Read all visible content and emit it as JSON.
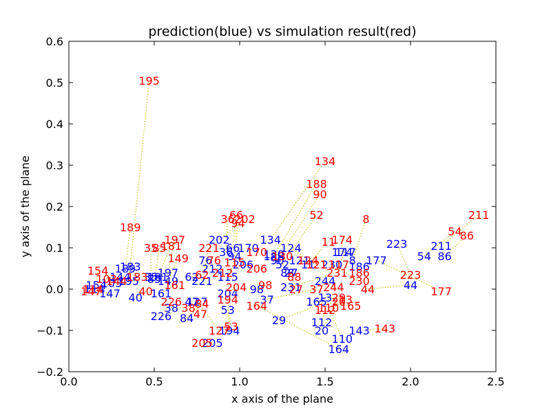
{
  "chart_data": {
    "type": "scatter",
    "title": "prediction(blue) vs simulation result(red)",
    "xlabel": "x axis of the plane",
    "ylabel": "y axis of the plane",
    "xlim": [
      0.0,
      2.5
    ],
    "ylim": [
      -0.2,
      0.6
    ],
    "xticks": [
      "0.0",
      "0.5",
      "1.0",
      "1.5",
      "2.0",
      "2.5"
    ],
    "yticks": [
      "−0.2",
      "−0.1",
      "0.0",
      "0.1",
      "0.2",
      "0.3",
      "0.4",
      "0.5",
      "0.6"
    ],
    "grid": false,
    "colors": {
      "prediction": "#0000ff",
      "simulation": "#ff0000",
      "connector": "#bfbf00"
    },
    "pairs": [
      {
        "id": "195",
        "pred": [
          0.35,
          0.02
        ],
        "sim": [
          0.47,
          0.505
        ]
      },
      {
        "id": "189",
        "pred": [
          0.33,
          0.05
        ],
        "sim": [
          0.36,
          0.15
        ]
      },
      {
        "id": "134",
        "pred": [
          1.18,
          0.12
        ],
        "sim": [
          1.5,
          0.31
        ]
      },
      {
        "id": "188",
        "pred": [
          1.2,
          0.08
        ],
        "sim": [
          1.45,
          0.255
        ]
      },
      {
        "id": "90",
        "pred": [
          1.22,
          0.07
        ],
        "sim": [
          1.47,
          0.23
        ]
      },
      {
        "id": "52",
        "pred": [
          1.25,
          0.06
        ],
        "sim": [
          1.45,
          0.18
        ]
      },
      {
        "id": "66",
        "pred": [
          0.96,
          0.1
        ],
        "sim": [
          0.98,
          0.18
        ]
      },
      {
        "id": "36",
        "pred": [
          0.92,
          0.09
        ],
        "sim": [
          0.93,
          0.17
        ]
      },
      {
        "id": "202",
        "pred": [
          0.88,
          0.12
        ],
        "sim": [
          1.03,
          0.17
        ]
      },
      {
        "id": "94",
        "pred": [
          0.97,
          0.08
        ],
        "sim": [
          0.99,
          0.16
        ]
      },
      {
        "id": "8",
        "pred": [
          1.66,
          0.07
        ],
        "sim": [
          1.74,
          0.17
        ]
      },
      {
        "id": "174",
        "pred": [
          1.6,
          0.09
        ],
        "sim": [
          1.6,
          0.12
        ]
      },
      {
        "id": "11",
        "pred": [
          1.4,
          0.06
        ],
        "sim": [
          1.52,
          0.115
        ]
      },
      {
        "id": "117",
        "pred": [
          1.62,
          0.09
        ],
        "sim": [
          1.58,
          0.06
        ]
      },
      {
        "id": "211",
        "pred": [
          2.18,
          0.105
        ],
        "sim": [
          2.4,
          0.18
        ]
      },
      {
        "id": "54",
        "pred": [
          2.08,
          0.08
        ],
        "sim": [
          2.26,
          0.14
        ]
      },
      {
        "id": "86",
        "pred": [
          2.2,
          0.08
        ],
        "sim": [
          2.33,
          0.13
        ]
      },
      {
        "id": "223",
        "pred": [
          1.92,
          0.11
        ],
        "sim": [
          2.0,
          0.035
        ]
      },
      {
        "id": "177",
        "pred": [
          1.8,
          0.07
        ],
        "sim": [
          2.18,
          -0.005
        ]
      },
      {
        "id": "44",
        "pred": [
          2.0,
          0.01
        ],
        "sim": [
          1.75,
          0.0
        ]
      },
      {
        "id": "186",
        "pred": [
          1.7,
          0.055
        ],
        "sim": [
          1.7,
          0.04
        ]
      },
      {
        "id": "230",
        "pred": [
          1.54,
          0.06
        ],
        "sim": [
          1.7,
          0.02
        ]
      },
      {
        "id": "143",
        "pred": [
          1.7,
          -0.1
        ],
        "sim": [
          1.85,
          -0.095
        ]
      },
      {
        "id": "110",
        "pred": [
          1.6,
          -0.12
        ],
        "sim": [
          1.52,
          -0.045
        ]
      },
      {
        "id": "164",
        "pred": [
          1.58,
          -0.145
        ],
        "sim": [
          1.1,
          -0.04
        ]
      },
      {
        "id": "112",
        "pred": [
          1.48,
          -0.08
        ],
        "sim": [
          1.5,
          -0.05
        ]
      },
      {
        "id": "20",
        "pred": [
          1.48,
          -0.1
        ],
        "sim": [
          1.58,
          -0.03
        ]
      },
      {
        "id": "29",
        "pred": [
          1.23,
          -0.075
        ],
        "sim": [
          1.58,
          -0.02
        ]
      },
      {
        "id": "165",
        "pred": [
          1.45,
          -0.03
        ],
        "sim": [
          1.65,
          -0.04
        ]
      },
      {
        "id": "13",
        "pred": [
          1.5,
          -0.02
        ],
        "sim": [
          1.62,
          -0.025
        ]
      },
      {
        "id": "37",
        "pred": [
          1.16,
          -0.025
        ],
        "sim": [
          1.45,
          0.0
        ]
      },
      {
        "id": "244",
        "pred": [
          1.5,
          0.02
        ],
        "sim": [
          1.55,
          0.005
        ]
      },
      {
        "id": "231",
        "pred": [
          1.3,
          0.005
        ],
        "sim": [
          1.57,
          0.04
        ]
      },
      {
        "id": "27",
        "pred": [
          1.3,
          0.04
        ],
        "sim": [
          1.33,
          0.0
        ]
      },
      {
        "id": "98",
        "pred": [
          1.1,
          0.0
        ],
        "sim": [
          1.15,
          0.01
        ]
      },
      {
        "id": "204",
        "pred": [
          0.93,
          -0.01
        ],
        "sim": [
          0.98,
          0.005
        ]
      },
      {
        "id": "53",
        "pred": [
          0.93,
          -0.05
        ],
        "sim": [
          0.95,
          -0.09
        ]
      },
      {
        "id": "194",
        "pred": [
          0.94,
          -0.1
        ],
        "sim": [
          0.93,
          -0.025
        ]
      },
      {
        "id": "127",
        "pred": [
          0.75,
          -0.03
        ],
        "sim": [
          0.88,
          -0.1
        ]
      },
      {
        "id": "205",
        "pred": [
          0.84,
          -0.13
        ],
        "sim": [
          0.78,
          -0.13
        ]
      },
      {
        "id": "84",
        "pred": [
          0.69,
          -0.07
        ],
        "sim": [
          0.78,
          -0.035
        ]
      },
      {
        "id": "47",
        "pred": [
          0.72,
          -0.03
        ],
        "sim": [
          0.77,
          -0.06
        ]
      },
      {
        "id": "38",
        "pred": [
          0.6,
          -0.045
        ],
        "sim": [
          0.7,
          -0.045
        ]
      },
      {
        "id": "226",
        "pred": [
          0.54,
          -0.065
        ],
        "sim": [
          0.6,
          -0.03
        ]
      },
      {
        "id": "197",
        "pred": [
          0.58,
          0.04
        ],
        "sim": [
          0.62,
          0.12
        ]
      },
      {
        "id": "181",
        "pred": [
          0.52,
          0.03
        ],
        "sim": [
          0.6,
          0.105
        ]
      },
      {
        "id": "35",
        "pred": [
          0.48,
          0.03
        ],
        "sim": [
          0.48,
          0.1
        ]
      },
      {
        "id": "85",
        "pred": [
          0.5,
          0.025
        ],
        "sim": [
          0.53,
          0.1
        ]
      },
      {
        "id": "149",
        "pred": [
          0.58,
          0.02
        ],
        "sim": [
          0.64,
          0.075
        ]
      },
      {
        "id": "221",
        "pred": [
          0.78,
          0.02
        ],
        "sim": [
          0.82,
          0.1
        ]
      },
      {
        "id": "115",
        "pred": [
          0.93,
          0.03
        ],
        "sim": [
          0.97,
          0.065
        ]
      },
      {
        "id": "154",
        "pred": [
          0.16,
          0.01
        ],
        "sim": [
          0.17,
          0.045
        ]
      },
      {
        "id": "183",
        "pred": [
          0.36,
          0.055
        ],
        "sim": [
          0.4,
          0.03
        ]
      },
      {
        "id": "114",
        "pred": [
          0.15,
          0.0
        ],
        "sim": [
          0.14,
          0.0
        ]
      },
      {
        "id": "147",
        "pred": [
          0.24,
          -0.01
        ],
        "sim": [
          0.13,
          -0.005
        ]
      },
      {
        "id": "40",
        "pred": [
          0.39,
          -0.02
        ],
        "sim": [
          0.45,
          -0.005
        ]
      },
      {
        "id": "161",
        "pred": [
          0.54,
          -0.01
        ],
        "sim": [
          0.62,
          0.01
        ]
      },
      {
        "id": "76",
        "pred": [
          0.8,
          0.07
        ],
        "sim": [
          0.85,
          0.07
        ]
      },
      {
        "id": "124",
        "pred": [
          1.3,
          0.1
        ],
        "sim": [
          1.4,
          0.07
        ]
      },
      {
        "id": "121",
        "pred": [
          1.35,
          0.07
        ],
        "sim": [
          1.45,
          0.06
        ]
      },
      {
        "id": "130",
        "pred": [
          1.2,
          0.085
        ],
        "sim": [
          1.25,
          0.08
        ]
      },
      {
        "id": "170",
        "pred": [
          1.05,
          0.1
        ],
        "sim": [
          1.1,
          0.09
        ]
      },
      {
        "id": "206",
        "pred": [
          1.02,
          0.06
        ],
        "sim": [
          1.1,
          0.05
        ]
      },
      {
        "id": "212",
        "pred": [
          0.84,
          0.05
        ],
        "sim": [
          0.9,
          0.04
        ]
      },
      {
        "id": "62",
        "pred": [
          0.72,
          0.03
        ],
        "sim": [
          0.78,
          0.035
        ]
      },
      {
        "id": "88",
        "pred": [
          1.28,
          0.04
        ],
        "sim": [
          1.32,
          0.03
        ]
      },
      {
        "id": "144",
        "pred": [
          0.3,
          0.03
        ],
        "sim": [
          0.28,
          0.02
        ]
      },
      {
        "id": "103",
        "pred": [
          0.25,
          0.015
        ],
        "sim": [
          0.22,
          0.025
        ]
      }
    ]
  }
}
